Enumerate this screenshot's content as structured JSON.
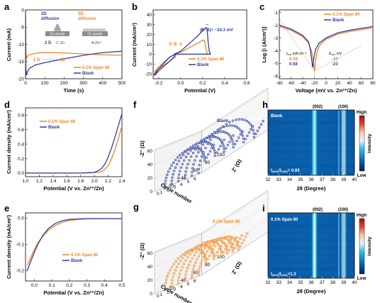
{
  "colors": {
    "spe": "#F0861F",
    "blk": "#2C3E9E",
    "gray": "#9a9a9a"
  },
  "legend": {
    "span": "0.1% Span 80",
    "blank": "Blank"
  },
  "panels": {
    "a": {
      "label": "a",
      "xlabel": "Time (s)",
      "ylabel": "Current (mA)",
      "xticks": [
        "0",
        "100",
        "200",
        "300",
        "400",
        "500"
      ],
      "yticks": [
        "0",
        "-5",
        "-10",
        "-15",
        "-20"
      ],
      "diag2d_title": "2D\ndiffusion",
      "diag2d_title_l1": "2D",
      "diag2d_title_l2": "diffusion",
      "diag3d_title_l1": "3D",
      "diag3d_title_l2": "diffusion",
      "anode_label": "Zn anode",
      "d2_label": "2 D",
      "zn_label": "Zn",
      "zn2_label": "Zn²⁺",
      "trans_2d": "2 D",
      "trans_3d": "3D"
    },
    "b": {
      "label": "b",
      "xlabel": "Potential (V)",
      "ylabel": "Current (mA/cm²)",
      "xticks": [
        "-0.2",
        "0.0",
        "0.2",
        "0.4",
        "0.6"
      ],
      "yticks": [
        "40",
        "30",
        "20",
        "10",
        "0",
        "-10",
        "-20"
      ],
      "ann_delta": "|B'-B|= ~24.3 mV",
      "pt_o": "O",
      "pt_b": "B",
      "pt_a": "A"
    },
    "c": {
      "label": "c",
      "xlabel": "Voltage (mV vs. Zn²⁺/Zn)",
      "ylabel": "Log [i (A/cm²)]",
      "xticks": [
        "-80",
        "-60",
        "-40",
        "-20",
        "0",
        "20",
        "40",
        "60",
        "80"
      ],
      "yticks": [
        "-1",
        "-2",
        "-3",
        "-4",
        "-5",
        "-6"
      ],
      "icorr_label": "I",
      "icorr_sub": "corr",
      "icorr_unit": " mA cm⁻²",
      "ecorr_label": "E",
      "ecorr_sub": "corr",
      "ecorr_unit": " mV",
      "icorr_span": "0.39",
      "icorr_blank": "0.58",
      "ecorr_span": "-20",
      "ecorr_blank": "-23"
    },
    "d": {
      "label": "d",
      "xlabel": "Potential (V vs. Zn²⁺/Zn)",
      "ylabel": "Current density (mA/cm²)",
      "xticks": [
        "1.0",
        "1.2",
        "1.4",
        "1.6",
        "1.8",
        "2.0",
        "2.2",
        "2.4"
      ],
      "yticks": [
        "0.8",
        "0.6",
        "0.4",
        "0.2",
        "0.0"
      ]
    },
    "e": {
      "label": "e",
      "xlabel": "Potential (V vs. Zn²⁺/Zn)",
      "ylabel": "Current density (mA/cm²)",
      "xticks": [
        "0.0",
        "0.1",
        "0.2",
        "0.3",
        "0.4",
        "0.5"
      ],
      "yticks": [
        "0.0",
        "-0.1",
        "-0.2"
      ]
    },
    "f": {
      "label": "f",
      "title": "Blank",
      "ylabel": "-Z'' (Ω)",
      "xlabel": "Z' (Ω)",
      "depth": "Cycle number",
      "zticks": [
        "60",
        "40",
        "20",
        "0"
      ],
      "cycle_ticks": [
        "1",
        "2",
        "3",
        "4",
        "5",
        "6"
      ],
      "x_ticks": [
        "0",
        "20",
        "40",
        "60",
        "80",
        "100"
      ]
    },
    "g": {
      "label": "g",
      "title": "0.1% Span 80",
      "ylabel": "-Z'' (Ω)",
      "xlabel": "Z' (Ω)",
      "depth": "Cycle number",
      "zticks": [
        "60",
        "40",
        "20",
        "0"
      ],
      "cycle_ticks": [
        "1",
        "2",
        "3",
        "4",
        "5",
        "6"
      ],
      "x_ticks": [
        "0",
        "20",
        "40",
        "60",
        "80",
        "100"
      ]
    },
    "h": {
      "label": "h",
      "title": "Blank",
      "peak1": "(002)",
      "peak2": "(100)",
      "ratio": "I(002)/I(100)= 0.93",
      "ratio_main": "I",
      "ratio_sub1": "(002)",
      "ratio_mid": "/I",
      "ratio_sub2": "(100)",
      "ratio_val": "= 0.93",
      "xticks": [
        "32",
        "33",
        "34",
        "35",
        "36",
        "37",
        "38",
        "39",
        "40"
      ],
      "xlabel": "2θ (Degree)",
      "cbar_high": "High",
      "cbar_low": "Low",
      "cbar_label": "Intensity"
    },
    "i": {
      "label": "i",
      "title": "0.1% Span 80",
      "peak1": "(002)",
      "peak2": "(100)",
      "ratio_main": "I",
      "ratio_sub1": "(002)",
      "ratio_mid": "/I",
      "ratio_sub2": "(100)",
      "ratio_val": "=1.3",
      "xticks": [
        "32",
        "33",
        "34",
        "35",
        "36",
        "37",
        "38",
        "39",
        "40"
      ],
      "xlabel": "2θ (Degree)",
      "cbar_high": "High",
      "cbar_low": "Low",
      "cbar_label": "Intensity"
    }
  },
  "chart_data": [
    {
      "panel": "a",
      "type": "line",
      "xlabel": "Time (s)",
      "ylabel": "Current (mA)",
      "xlim": [
        0,
        500
      ],
      "ylim": [
        -20,
        0
      ],
      "series": [
        {
          "name": "0.1% Span 80",
          "x": [
            0,
            2,
            5,
            10,
            20,
            50,
            100,
            200,
            300,
            400,
            500
          ],
          "y": [
            0,
            -12,
            -14,
            -13.5,
            -13,
            -12.6,
            -12.3,
            -12.5,
            -12.8,
            -13,
            -13.2
          ]
        },
        {
          "name": "Blank",
          "x": [
            0,
            2,
            5,
            10,
            20,
            50,
            100,
            200,
            300,
            400,
            500
          ],
          "y": [
            0,
            -17,
            -19,
            -18,
            -17,
            -16,
            -15.3,
            -14.2,
            -13.2,
            -12.4,
            -12
          ]
        }
      ]
    },
    {
      "panel": "b",
      "type": "line",
      "xlabel": "Potential (V)",
      "ylabel": "Current (mA/cm²)",
      "xlim": [
        -0.25,
        0.6
      ],
      "ylim": [
        -25,
        45
      ],
      "series": [
        {
          "name": "0.1% Span 80",
          "x": [
            -0.24,
            -0.2,
            -0.15,
            -0.1,
            -0.05,
            -0.04,
            -0.05,
            0,
            0.05,
            0.1,
            0.15,
            0.2,
            0.21,
            0.22,
            0.23,
            0.24,
            0.25,
            0.2,
            0.1,
            0,
            -0.05,
            -0.1,
            -0.15,
            -0.2,
            -0.24
          ],
          "y": [
            -19,
            -15,
            -11,
            -7,
            -3,
            0,
            0,
            2,
            5,
            8,
            11,
            14,
            14.5,
            12,
            5,
            1,
            0,
            0,
            0,
            0,
            0,
            -3,
            -8,
            -13,
            -18
          ]
        },
        {
          "name": "Blank",
          "x": [
            -0.24,
            -0.2,
            -0.15,
            -0.1,
            -0.06,
            -0.05,
            -0.06,
            0,
            0.05,
            0.1,
            0.15,
            0.2,
            0.23,
            0.24,
            0.25,
            0.26,
            0.27,
            0.2,
            0.1,
            0,
            -0.05,
            -0.1,
            -0.15,
            -0.2,
            -0.24
          ],
          "y": [
            -22,
            -17,
            -12,
            -7,
            -3,
            0,
            0,
            3,
            8,
            13,
            18,
            24,
            27,
            26,
            12,
            3,
            0,
            0,
            0,
            0,
            0,
            -3,
            -9,
            -15,
            -21
          ]
        }
      ]
    },
    {
      "panel": "c",
      "type": "line",
      "xlabel": "Voltage (mV vs. Zn²⁺/Zn)",
      "ylabel": "Log [i (A/cm²)]",
      "xlim": [
        -80,
        80
      ],
      "ylim": [
        -6.2,
        -0.8
      ],
      "series": [
        {
          "name": "0.1% Span 80",
          "x": [
            -80,
            -60,
            -40,
            -30,
            -25,
            -22,
            -20,
            -18,
            -15,
            -10,
            0,
            20,
            40,
            60,
            80
          ],
          "y": [
            -2.1,
            -2.4,
            -2.9,
            -3.4,
            -4.0,
            -4.8,
            -5.6,
            -4.8,
            -4.0,
            -3.5,
            -3.1,
            -2.7,
            -2.5,
            -2.35,
            -2.2
          ]
        },
        {
          "name": "Blank",
          "x": [
            -80,
            -60,
            -40,
            -30,
            -27,
            -25,
            -23,
            -21,
            -18,
            -12,
            0,
            20,
            40,
            60,
            80
          ],
          "y": [
            -2.0,
            -2.3,
            -2.8,
            -3.3,
            -3.9,
            -4.6,
            -5.3,
            -4.6,
            -3.9,
            -3.4,
            -3.0,
            -2.6,
            -2.4,
            -2.25,
            -2.1
          ]
        }
      ]
    },
    {
      "panel": "d",
      "type": "line",
      "xlabel": "Potential (V vs. Zn²⁺/Zn)",
      "ylabel": "Current density (mA/cm²)",
      "xlim": [
        1.0,
        2.4
      ],
      "ylim": [
        -0.05,
        0.9
      ],
      "series": [
        {
          "name": "0.1% Span 80",
          "x": [
            1.0,
            1.4,
            1.8,
            2.0,
            2.1,
            2.15,
            2.2,
            2.25,
            2.3,
            2.35,
            2.4
          ],
          "y": [
            0,
            0,
            0,
            0.005,
            0.02,
            0.05,
            0.1,
            0.2,
            0.33,
            0.48,
            0.65
          ]
        },
        {
          "name": "Blank",
          "x": [
            1.0,
            1.4,
            1.8,
            2.0,
            2.05,
            2.1,
            2.15,
            2.2,
            2.25,
            2.3,
            2.35,
            2.4
          ],
          "y": [
            0,
            0,
            0,
            0.01,
            0.03,
            0.06,
            0.12,
            0.22,
            0.35,
            0.5,
            0.66,
            0.82
          ]
        }
      ]
    },
    {
      "panel": "e",
      "type": "line",
      "xlabel": "Potential (V vs. Zn²⁺/Zn)",
      "ylabel": "Current density (mA/cm²)",
      "xlim": [
        -0.05,
        0.5
      ],
      "ylim": [
        -0.24,
        0.02
      ],
      "series": [
        {
          "name": "0.1% Span 80",
          "x": [
            -0.04,
            -0.02,
            0,
            0.02,
            0.05,
            0.08,
            0.12,
            0.16,
            0.2,
            0.25,
            0.3,
            0.4,
            0.5
          ],
          "y": [
            -0.18,
            -0.15,
            -0.12,
            -0.095,
            -0.068,
            -0.047,
            -0.028,
            -0.016,
            -0.009,
            -0.005,
            -0.003,
            -0.002,
            -0.002
          ]
        },
        {
          "name": "Blank",
          "x": [
            -0.04,
            -0.02,
            0,
            0.02,
            0.05,
            0.08,
            0.12,
            0.16,
            0.2,
            0.25,
            0.3,
            0.4,
            0.5
          ],
          "y": [
            -0.2,
            -0.165,
            -0.13,
            -0.1,
            -0.065,
            -0.04,
            -0.02,
            -0.01,
            -0.005,
            -0.003,
            -0.002,
            -0.002,
            -0.002
          ]
        }
      ]
    },
    {
      "panel": "f",
      "type": "scatter",
      "title": "Blank",
      "xlabel": "Z' (Ω)",
      "ylabel": "-Z'' (Ω)",
      "zlabel": "Cycle number",
      "cycles": [
        1,
        2,
        3,
        4,
        5,
        6
      ],
      "semicircle_peak_ohm": [
        33,
        36,
        38,
        40,
        43,
        46
      ]
    },
    {
      "panel": "g",
      "type": "scatter",
      "title": "0.1% Span 80",
      "xlabel": "Z' (Ω)",
      "ylabel": "-Z'' (Ω)",
      "zlabel": "Cycle number",
      "cycles": [
        1,
        2,
        3,
        4,
        5,
        6
      ],
      "semicircle_peak_ohm": [
        34,
        35,
        36,
        35,
        34,
        33
      ]
    },
    {
      "panel": "h",
      "type": "heatmap",
      "title": "Blank",
      "xlabel": "2θ (Degree)",
      "xlim": [
        32,
        40
      ],
      "peaks": [
        {
          "label": "(002)",
          "x": 36.3
        },
        {
          "label": "(100)",
          "x": 39.0
        }
      ],
      "ratio": 0.93
    },
    {
      "panel": "i",
      "type": "heatmap",
      "title": "0.1% Span 80",
      "xlabel": "2θ (Degree)",
      "xlim": [
        32,
        40
      ],
      "peaks": [
        {
          "label": "(002)",
          "x": 36.3
        },
        {
          "label": "(100)",
          "x": 39.0
        }
      ],
      "ratio": 1.3
    }
  ]
}
